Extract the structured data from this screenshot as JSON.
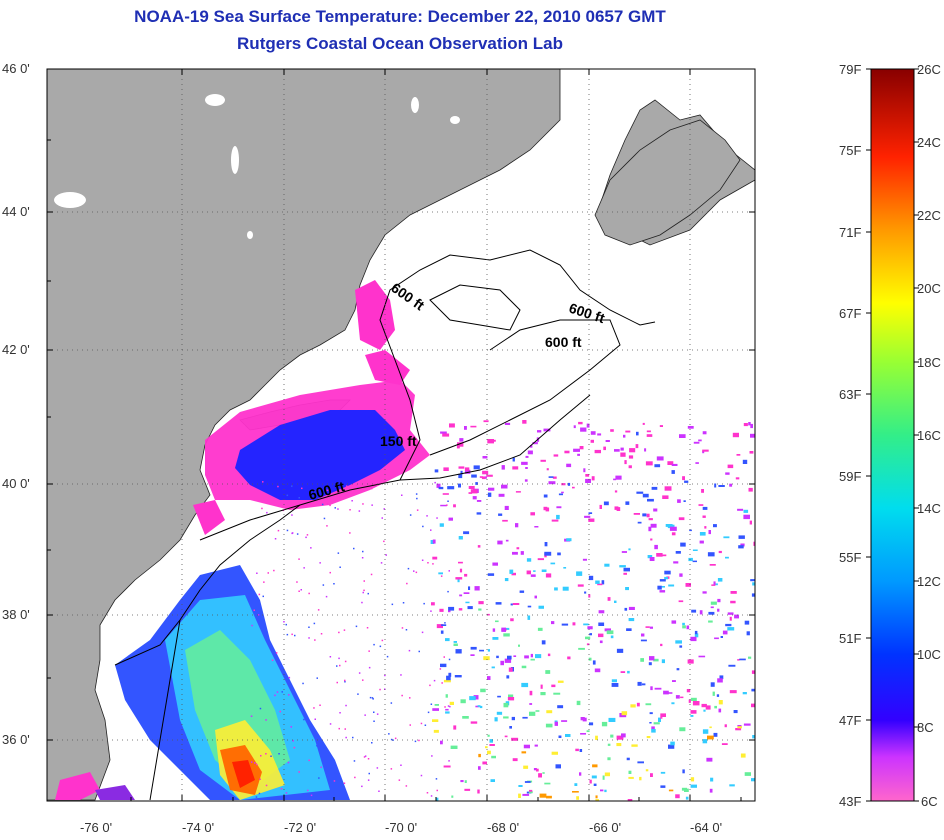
{
  "title": {
    "line1": "NOAA-19 Sea Surface Temperature:  December 22, 2010 0657 GMT",
    "line2": "Rutgers Coastal Ocean Observation Lab"
  },
  "map": {
    "lat_labels": [
      "46 0'",
      "44 0'",
      "42 0'",
      "40 0'",
      "38 0'",
      "36 0'"
    ],
    "lon_labels": [
      "-76 0'",
      "-74 0'",
      "-72 0'",
      "-70 0'",
      "-68 0'",
      "-66 0'",
      "-64 0'"
    ],
    "lat_range": [
      35,
      46
    ],
    "lon_range": [
      -77,
      -63
    ],
    "contour_labels": [
      "600 ft",
      "600 ft",
      "600 ft",
      "150 ft",
      "600 ft"
    ],
    "colors": {
      "land": "#a9a9a9",
      "ocean": "#ffffff"
    }
  },
  "colorbar": {
    "f_labels": [
      "79F",
      "75F",
      "71F",
      "67F",
      "63F",
      "59F",
      "55F",
      "51F",
      "47F",
      "43F"
    ],
    "c_labels": [
      "26C",
      "24C",
      "22C",
      "20C",
      "18C",
      "16C",
      "14C",
      "12C",
      "10C",
      "8C",
      "6C"
    ]
  }
}
